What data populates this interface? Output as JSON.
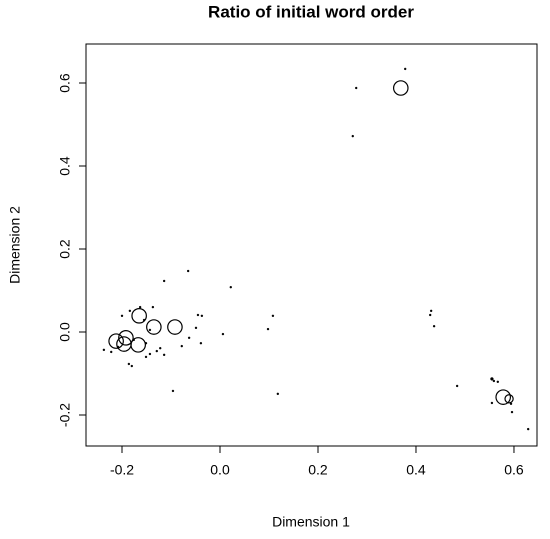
{
  "chart_data": {
    "type": "scatter",
    "title": "Ratio of initial word order",
    "x_label": "Dimension 1",
    "y_label": "Dimension 2",
    "x": [
      0.369,
      0.578,
      -0.192,
      -0.212,
      -0.196,
      -0.135,
      -0.092,
      -0.165,
      -0.167,
      0.59,
      0.378,
      0.278,
      0.271,
      0.022,
      -0.065,
      -0.114,
      -0.045,
      -0.037,
      -0.049,
      -0.039,
      -0.063,
      -0.078,
      -0.096,
      0.006,
      0.098,
      0.108,
      0.118,
      0.431,
      0.429,
      0.437,
      0.484,
      0.555,
      0.559,
      0.567,
      0.555,
      0.594,
      0.596,
      0.629,
      -0.237,
      -0.222,
      -0.208,
      -0.2,
      -0.184,
      -0.163,
      -0.137,
      -0.186,
      -0.18,
      -0.151,
      -0.143,
      -0.129,
      -0.122,
      -0.151,
      -0.176,
      -0.155,
      -0.143,
      -0.114
    ],
    "y": [
      0.588,
      -0.157,
      -0.014,
      -0.022,
      -0.029,
      0.012,
      0.012,
      0.039,
      -0.031,
      -0.161,
      0.634,
      0.588,
      0.472,
      0.108,
      0.147,
      0.123,
      0.041,
      0.039,
      0.01,
      -0.027,
      -0.014,
      -0.034,
      -0.142,
      -0.005,
      0.007,
      0.039,
      -0.149,
      0.051,
      0.041,
      0.014,
      -0.13,
      -0.113,
      -0.118,
      -0.12,
      -0.171,
      -0.173,
      -0.193,
      -0.234,
      -0.043,
      -0.048,
      -0.036,
      0.039,
      0.051,
      0.06,
      0.06,
      -0.077,
      -0.082,
      -0.06,
      -0.053,
      -0.046,
      -0.039,
      -0.027,
      -0.019,
      0.029,
      0.005,
      -0.055
    ],
    "sizes": [
      3,
      3,
      3,
      3,
      3,
      3,
      3,
      3,
      3,
      1.7,
      0.4,
      0.4,
      0.4,
      0.4,
      0.4,
      0.4,
      0.4,
      0.4,
      0.4,
      0.4,
      0.4,
      0.4,
      0.4,
      0.4,
      0.4,
      0.4,
      0.4,
      0.4,
      0.4,
      0.4,
      0.4,
      0.6,
      0.4,
      0.4,
      0.4,
      0.4,
      0.4,
      0.4,
      0.4,
      0.4,
      0.4,
      0.4,
      0.4,
      0.4,
      0.4,
      0.4,
      0.4,
      0.4,
      0.4,
      0.4,
      0.4,
      0.4,
      0.4,
      0.4,
      0.4,
      0.4
    ],
    "color": "#000000",
    "xlim": [
      -0.2735,
      0.647
    ],
    "ylim": [
      -0.2747,
      0.694
    ],
    "xticks": [
      -0.2,
      {
        "value": 0,
        "label": "0.0"
      },
      0.2,
      0.4,
      0.6
    ],
    "yticks": [
      -0.2,
      {
        "value": 0,
        "label": "0.0"
      },
      0.2,
      0.4,
      0.6
    ]
  }
}
